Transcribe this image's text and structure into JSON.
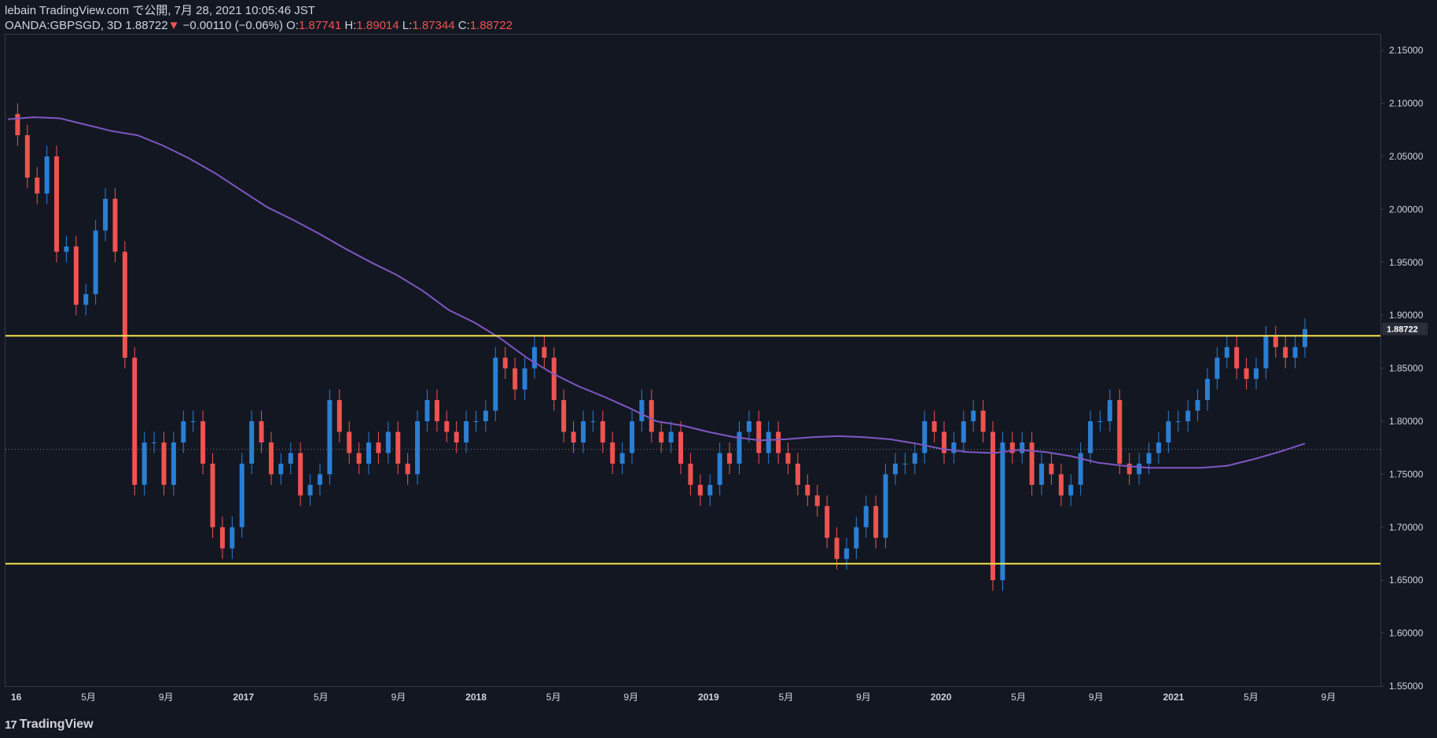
{
  "header": {
    "publisher": "lebain TradingView.com で公開, 7月 28, 2021 10:05:46 JST",
    "symbol": "OANDA:GBPSGD, 3D",
    "last": "1.88722",
    "change_arrow": "▼",
    "change": "−0.00110 (−0.06%)",
    "open_label": "O:",
    "open": "1.87741",
    "high_label": "H:",
    "high": "1.89014",
    "low_label": "L:",
    "low": "1.87344",
    "close_label": "C:",
    "close": "1.88722"
  },
  "brand": {
    "icon": "tradingview-logo-icon",
    "name": "TradingView"
  },
  "colors": {
    "background": "#131722",
    "up": "#2a7fd4",
    "down": "#ef5350",
    "ma": "#7e57c2",
    "hline": "#f5e44c",
    "grid_text": "#d1d4dc"
  },
  "chart_data": {
    "type": "candlestick",
    "title": "",
    "xlabel": "",
    "ylabel": "",
    "ylim": [
      1.55,
      2.165
    ],
    "y_ticks": [
      "2.15000",
      "2.10000",
      "2.05000",
      "2.00000",
      "1.95000",
      "1.90000",
      "1.85000",
      "1.80000",
      "1.75000",
      "1.70000",
      "1.65000",
      "1.60000",
      "1.55000"
    ],
    "x_ticks": [
      "16",
      "5月",
      "9月",
      "2017",
      "5月",
      "9月",
      "2018",
      "5月",
      "9月",
      "2019",
      "5月",
      "9月",
      "2020",
      "5月",
      "9月",
      "2021",
      "5月",
      "9月"
    ],
    "last_price_label": "1.88722",
    "horizontal_lines": [
      1.8807,
      1.6655
    ],
    "dotted_line": 1.7735,
    "ma_series": {
      "values": [
        2.085,
        2.087,
        2.086,
        2.08,
        2.074,
        2.07,
        2.06,
        2.048,
        2.034,
        2.018,
        2.002,
        1.99,
        1.977,
        1.963,
        1.95,
        1.938,
        1.923,
        1.905,
        1.893,
        1.878,
        1.86,
        1.845,
        1.833,
        1.823,
        1.812,
        1.8,
        1.796,
        1.79,
        1.785,
        1.782,
        1.783,
        1.785,
        1.786,
        1.785,
        1.783,
        1.779,
        1.774,
        1.771,
        1.77,
        1.773,
        1.771,
        1.767,
        1.761,
        1.758,
        1.756,
        1.756,
        1.756,
        1.758,
        1.764,
        1.771,
        1.779
      ]
    },
    "price_series": {
      "values": [
        2.09,
        2.07,
        2.03,
        2.015,
        2.05,
        1.96,
        1.965,
        1.91,
        1.92,
        1.98,
        2.01,
        1.96,
        1.86,
        1.74,
        1.78,
        1.78,
        1.74,
        1.78,
        1.8,
        1.8,
        1.76,
        1.7,
        1.68,
        1.7,
        1.76,
        1.8,
        1.78,
        1.75,
        1.76,
        1.77,
        1.73,
        1.74,
        1.75,
        1.82,
        1.79,
        1.77,
        1.76,
        1.78,
        1.77,
        1.79,
        1.76,
        1.75,
        1.8,
        1.82,
        1.8,
        1.79,
        1.78,
        1.8,
        1.8,
        1.81,
        1.86,
        1.85,
        1.83,
        1.85,
        1.87,
        1.86,
        1.82,
        1.79,
        1.78,
        1.8,
        1.8,
        1.78,
        1.76,
        1.77,
        1.8,
        1.82,
        1.79,
        1.78,
        1.79,
        1.76,
        1.74,
        1.73,
        1.74,
        1.77,
        1.76,
        1.79,
        1.8,
        1.77,
        1.79,
        1.77,
        1.76,
        1.74,
        1.73,
        1.72,
        1.69,
        1.67,
        1.68,
        1.7,
        1.72,
        1.69,
        1.75,
        1.76,
        1.76,
        1.77,
        1.8,
        1.79,
        1.77,
        1.78,
        1.8,
        1.81,
        1.79,
        1.65,
        1.78,
        1.77,
        1.78,
        1.74,
        1.76,
        1.75,
        1.73,
        1.74,
        1.77,
        1.8,
        1.8,
        1.82,
        1.76,
        1.75,
        1.76,
        1.77,
        1.78,
        1.8,
        1.8,
        1.81,
        1.82,
        1.84,
        1.86,
        1.87,
        1.85,
        1.84,
        1.85,
        1.88,
        1.87,
        1.86,
        1.87,
        1.887
      ]
    }
  }
}
